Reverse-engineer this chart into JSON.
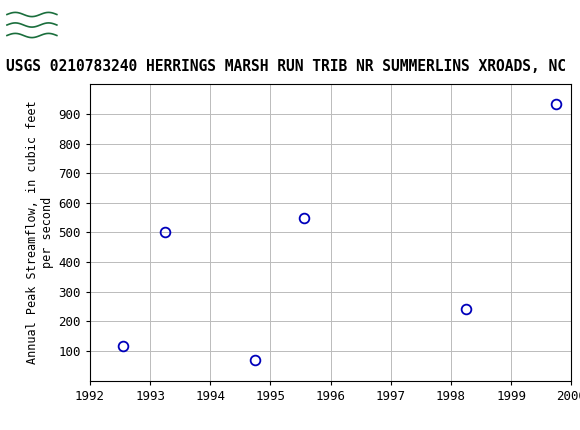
{
  "title": "USGS 0210783240 HERRINGS MARSH RUN TRIB NR SUMMERLINS XROADS, NC",
  "ylabel_line1": "Annual Peak Streamflow, in cubic feet",
  "ylabel_line2": "per second",
  "x_data": [
    1992.55,
    1993.25,
    1994.75,
    1995.55,
    1998.25,
    1999.75
  ],
  "y_data": [
    115,
    503,
    70,
    550,
    240,
    935
  ],
  "xlim": [
    1992,
    2000
  ],
  "ylim": [
    0,
    1000
  ],
  "xticks": [
    1992,
    1993,
    1994,
    1995,
    1996,
    1997,
    1998,
    1999,
    2000
  ],
  "yticks": [
    100,
    200,
    300,
    400,
    500,
    600,
    700,
    800,
    900
  ],
  "marker_color": "#0000bb",
  "marker_size": 7,
  "grid_color": "#bbbbbb",
  "background_color": "#ffffff",
  "header_color": "#1a6e3c",
  "title_fontsize": 10.5,
  "ylabel_fontsize": 8.5,
  "tick_fontsize": 9,
  "usgs_text": "USGS",
  "usgs_fontsize": 15
}
